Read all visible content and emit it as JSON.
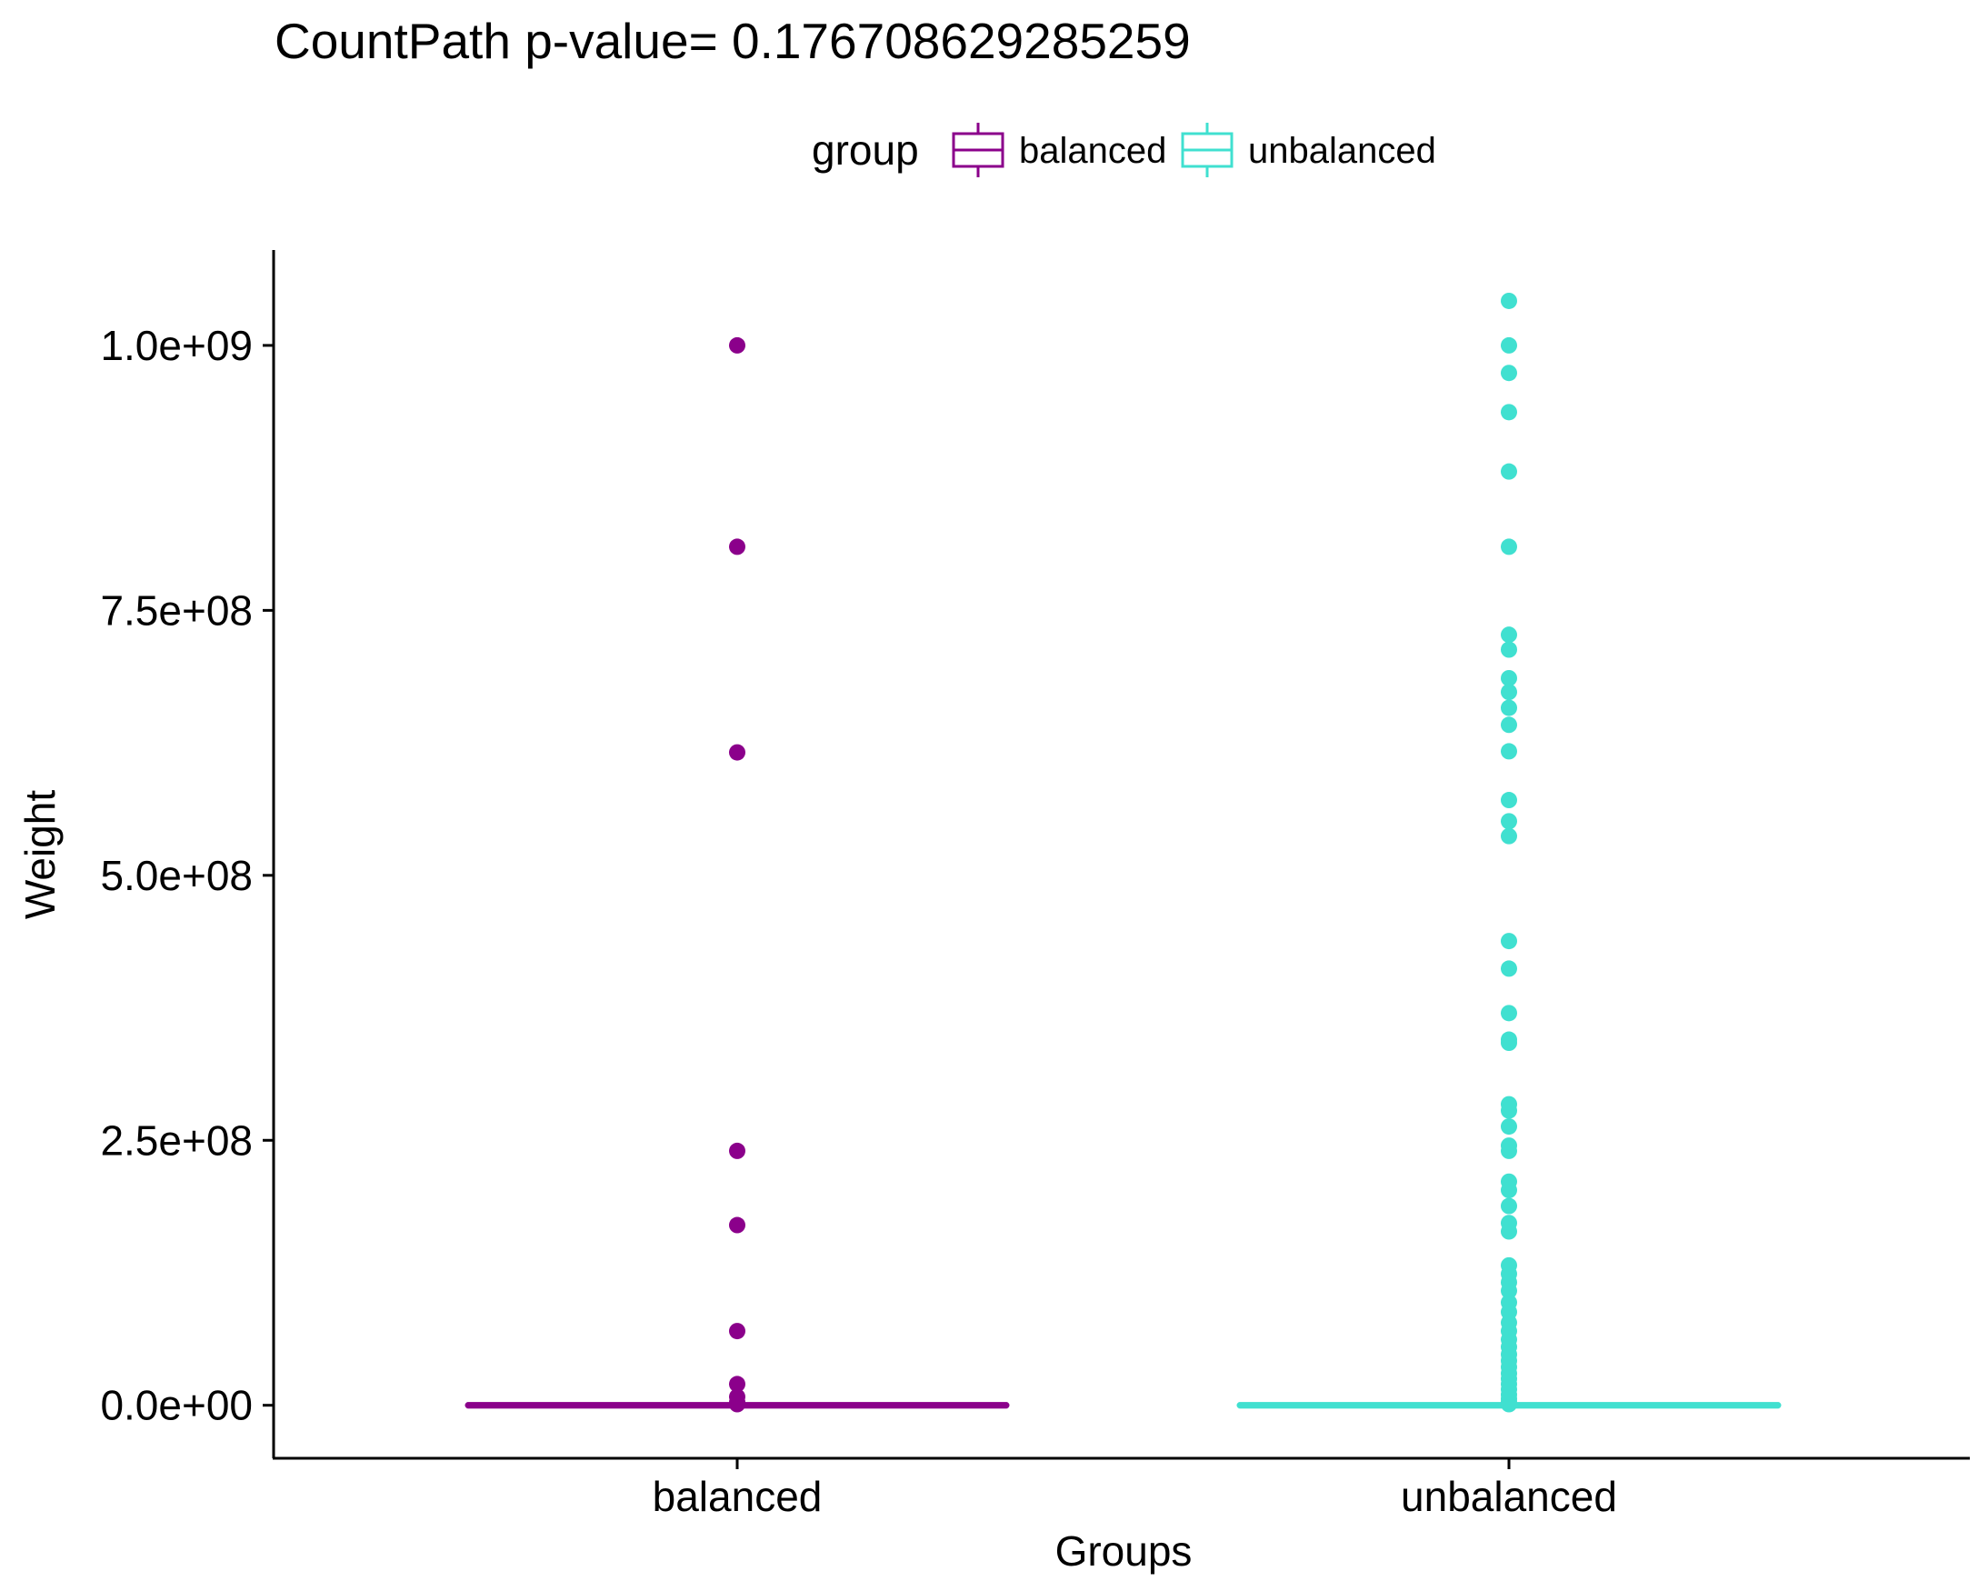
{
  "chart_data": {
    "type": "box",
    "title": "CountPath  p-value= 0.176708629285259",
    "xlabel": "Groups",
    "ylabel": "Weight",
    "ylim": [
      -50000000,
      1090000000
    ],
    "y_ticks": [
      {
        "value": 0,
        "label": "0.0e+00"
      },
      {
        "value": 250000000,
        "label": "2.5e+08"
      },
      {
        "value": 500000000,
        "label": "5.0e+08"
      },
      {
        "value": 750000000,
        "label": "7.5e+08"
      },
      {
        "value": 1000000000,
        "label": "1.0e+09"
      }
    ],
    "categories": [
      "balanced",
      "unbalanced"
    ],
    "grid": false,
    "legend": {
      "title": "group",
      "position": "top",
      "entries": [
        {
          "label": "balanced",
          "color": "#8B008B"
        },
        {
          "label": "unbalanced",
          "color": "#40E0D0"
        }
      ]
    },
    "series": [
      {
        "name": "balanced",
        "color": "#8B008B",
        "box": {
          "q1": 0,
          "median": 0,
          "q3": 0,
          "whisker_low": 0,
          "whisker_high": 0
        },
        "outliers": [
          1000000000,
          810000000,
          616000000,
          240000000,
          170000000,
          70000000,
          20000000,
          8000000,
          3000000,
          1000000
        ]
      },
      {
        "name": "unbalanced",
        "color": "#40E0D0",
        "box": {
          "q1": 0,
          "median": 0,
          "q3": 0,
          "whisker_low": 0,
          "whisker_high": 0
        },
        "outliers": [
          1042000000,
          1000000000,
          974000000,
          937000000,
          881000000,
          810000000,
          727000000,
          713000000,
          686000000,
          673000000,
          658000000,
          642000000,
          617000000,
          571000000,
          551000000,
          537000000,
          438000000,
          412000000,
          370000000,
          345000000,
          342000000,
          284000000,
          278000000,
          263000000,
          245000000,
          240000000,
          211000000,
          203000000,
          188000000,
          172000000,
          164000000,
          132000000,
          124000000,
          116000000,
          108000000,
          97000000,
          88000000,
          78000000,
          70000000,
          62000000,
          55000000,
          48000000,
          42000000,
          36000000,
          30000000,
          25000000,
          20000000,
          15000000,
          10000000,
          6000000,
          3000000,
          1000000
        ]
      }
    ]
  }
}
